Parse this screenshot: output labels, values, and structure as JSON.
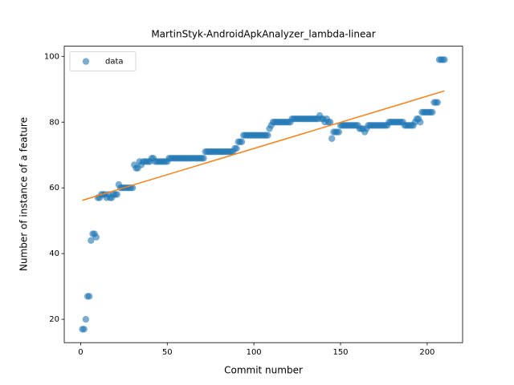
{
  "chart_data": {
    "type": "scatter",
    "title": "MartinStyk-AndroidApkAnalyzer_lambda-linear",
    "xlabel": "Commit number",
    "ylabel": "Number of instance of a feature",
    "xlim": [
      -9.45,
      220.45
    ],
    "ylim": [
      12.9,
      103.1
    ],
    "xticks": [
      0,
      50,
      100,
      150,
      200
    ],
    "yticks": [
      20,
      40,
      60,
      80,
      100
    ],
    "legend": "upper left",
    "x": [
      1,
      2,
      3,
      4,
      5,
      6,
      7,
      8,
      9,
      10,
      11,
      12,
      13,
      14,
      15,
      16,
      17,
      18,
      19,
      20,
      21,
      22,
      23,
      24,
      25,
      26,
      27,
      28,
      29,
      30,
      31,
      32,
      33,
      34,
      35,
      36,
      37,
      38,
      39,
      40,
      41,
      42,
      43,
      44,
      45,
      46,
      47,
      48,
      49,
      50,
      51,
      52,
      53,
      54,
      55,
      56,
      57,
      58,
      59,
      60,
      61,
      62,
      63,
      64,
      65,
      66,
      67,
      68,
      69,
      70,
      71,
      72,
      73,
      74,
      75,
      76,
      77,
      78,
      79,
      80,
      81,
      82,
      83,
      84,
      85,
      86,
      87,
      88,
      89,
      90,
      91,
      92,
      93,
      94,
      95,
      96,
      97,
      98,
      99,
      100,
      101,
      102,
      103,
      104,
      105,
      106,
      107,
      108,
      109,
      110,
      111,
      112,
      113,
      114,
      115,
      116,
      117,
      118,
      119,
      120,
      121,
      122,
      123,
      124,
      125,
      126,
      127,
      128,
      129,
      130,
      131,
      132,
      133,
      134,
      135,
      136,
      137,
      138,
      139,
      140,
      141,
      142,
      143,
      144,
      145,
      146,
      147,
      148,
      149,
      150,
      151,
      152,
      153,
      154,
      155,
      156,
      157,
      158,
      159,
      160,
      161,
      162,
      163,
      164,
      165,
      166,
      167,
      168,
      169,
      170,
      171,
      172,
      173,
      174,
      175,
      176,
      177,
      178,
      179,
      180,
      181,
      182,
      183,
      184,
      185,
      186,
      187,
      188,
      189,
      190,
      191,
      192,
      193,
      194,
      195,
      196,
      197,
      198,
      199,
      200,
      201,
      202,
      203,
      204,
      205,
      206,
      207,
      208,
      209,
      210
    ],
    "series": [
      {
        "name": "data",
        "color": "#1f77b4",
        "values": [
          17,
          17,
          20,
          27,
          27,
          44,
          46,
          46,
          45,
          57,
          57,
          58,
          58,
          58,
          57,
          58,
          57,
          57,
          58,
          58,
          58,
          61,
          60,
          60,
          60,
          60,
          60,
          60,
          60,
          60,
          67,
          66,
          66,
          68,
          67,
          68,
          68,
          68,
          68,
          68,
          69,
          69,
          68,
          68,
          68,
          68,
          68,
          68,
          68,
          68,
          69,
          69,
          69,
          69,
          69,
          69,
          69,
          69,
          69,
          69,
          69,
          69,
          69,
          69,
          69,
          69,
          69,
          69,
          69,
          69,
          69,
          71,
          71,
          71,
          71,
          71,
          71,
          71,
          71,
          71,
          71,
          71,
          71,
          71,
          71,
          71,
          71,
          71,
          72,
          72,
          74,
          74,
          74,
          76,
          76,
          76,
          76,
          76,
          76,
          76,
          76,
          76,
          76,
          76,
          76,
          76,
          76,
          76,
          78,
          79,
          80,
          80,
          80,
          80,
          80,
          80,
          80,
          80,
          80,
          80,
          80,
          81,
          81,
          81,
          81,
          81,
          81,
          81,
          81,
          81,
          81,
          81,
          81,
          81,
          81,
          81,
          81,
          82,
          81,
          81,
          80,
          81,
          80,
          80,
          75,
          77,
          77,
          77,
          77,
          79,
          79,
          79,
          79,
          79,
          79,
          79,
          79,
          79,
          79,
          79,
          78,
          78,
          78,
          77,
          78,
          79,
          79,
          79,
          79,
          79,
          79,
          79,
          79,
          79,
          79,
          79,
          79,
          80,
          80,
          80,
          80,
          80,
          80,
          80,
          80,
          80,
          79,
          79,
          79,
          79,
          79,
          79,
          80,
          81,
          81,
          80,
          83,
          83,
          83,
          83,
          83,
          83,
          83,
          86,
          86,
          86,
          99,
          99,
          99,
          99
        ]
      }
    ],
    "fit": {
      "color": "#ff7f0e",
      "x": [
        1,
        210
      ],
      "values": [
        56.2,
        89.5
      ]
    }
  }
}
